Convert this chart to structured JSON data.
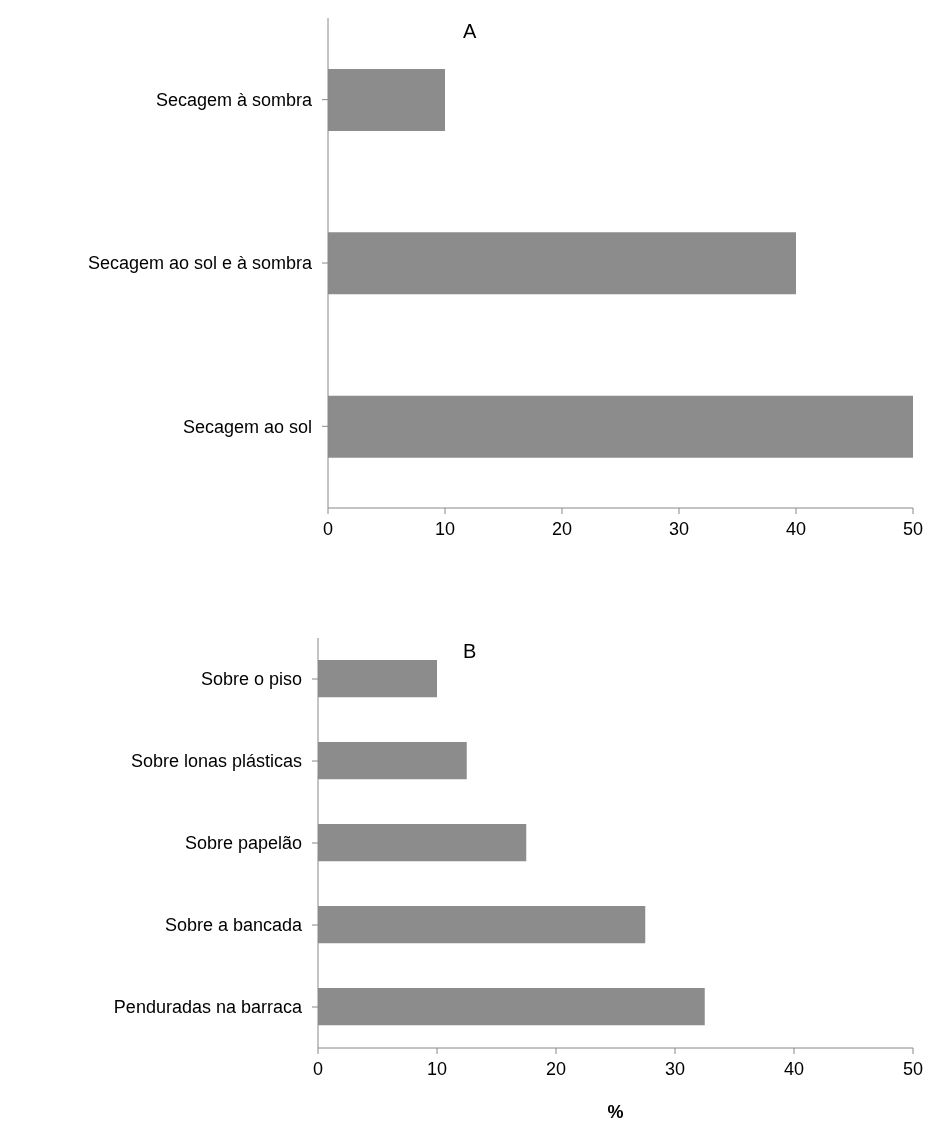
{
  "chart_data": [
    {
      "type": "bar",
      "orientation": "horizontal",
      "title": "A",
      "categories": [
        "Secagem à sombra",
        "Secagem ao sol e à sombra",
        "Secagem ao sol"
      ],
      "values": [
        10,
        40,
        50
      ],
      "color": "#8c8c8c",
      "xlim": [
        0,
        50
      ],
      "xticks": [
        0,
        10,
        20,
        30,
        40,
        50
      ],
      "grid": false,
      "legend": false
    },
    {
      "type": "bar",
      "orientation": "horizontal",
      "title": "B",
      "xlabel": "%",
      "categories": [
        "Sobre o piso",
        "Sobre lonas plásticas",
        "Sobre papelão",
        "Sobre a bancada",
        "Penduradas na barraca"
      ],
      "values": [
        10,
        12.5,
        17.5,
        27.5,
        32.5
      ],
      "color": "#8c8c8c",
      "xlim": [
        0,
        50
      ],
      "xticks": [
        0,
        10,
        20,
        30,
        40,
        50
      ],
      "grid": false,
      "legend": false
    }
  ]
}
